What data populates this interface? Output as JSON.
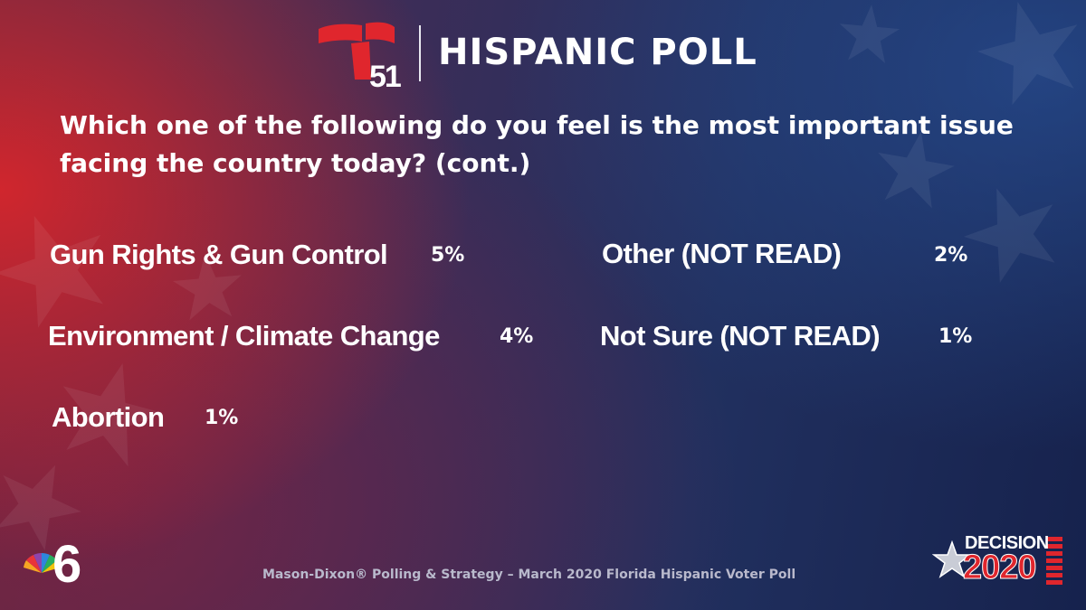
{
  "header": {
    "station_number": "51",
    "title": "HISPANIC POLL"
  },
  "question": "Which one of the following do you feel is the most important issue facing the country today? (cont.)",
  "chart_data": {
    "type": "table",
    "title": "Which one of the following do you feel is the most important issue facing the country today? (cont.)",
    "unit": "%",
    "rows": [
      {
        "label": "Gun Rights & Gun Control",
        "value": 5,
        "display": "5%"
      },
      {
        "label": "Environment / Climate Change",
        "value": 4,
        "display": "4%"
      },
      {
        "label": "Abortion",
        "value": 1,
        "display": "1%"
      },
      {
        "label": "Other (NOT READ)",
        "value": 2,
        "display": "2%"
      },
      {
        "label": "Not Sure (NOT READ)",
        "value": 1,
        "display": "1%"
      }
    ]
  },
  "footer": {
    "source": "Mason-Dixon® Polling & Strategy – March 2020 Florida Hispanic Voter Poll",
    "station_logo": "6"
  },
  "decision_logo": {
    "word": "DECISION",
    "year": "2020"
  },
  "colors": {
    "telemundo_red": "#e0262d",
    "background_red": "#d6262c",
    "background_navy": "#16224d",
    "footer_text": "#b9b9cc"
  }
}
